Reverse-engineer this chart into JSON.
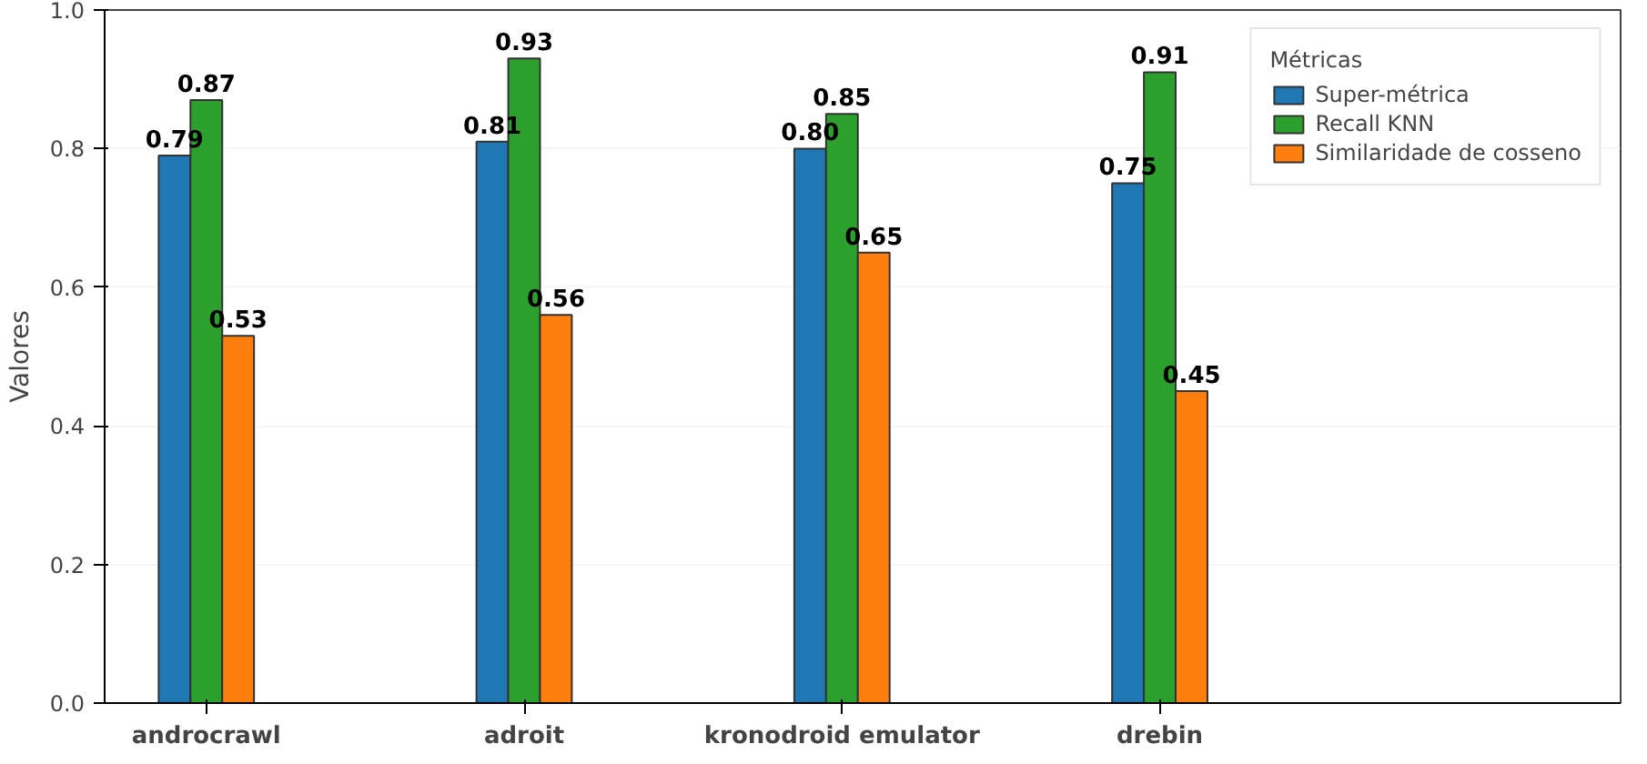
{
  "chart_data": {
    "type": "bar",
    "ylabel": "Valores",
    "legend_title": "Métricas",
    "categories": [
      "androcrawl",
      "adroit",
      "kronodroid emulator",
      "drebin"
    ],
    "series": [
      {
        "name": "Super-métrica",
        "color": "#1f77b4",
        "values": [
          0.79,
          0.81,
          0.8,
          0.75
        ],
        "value_labels": [
          "0.79",
          "0.81",
          "0.80",
          "0.75"
        ]
      },
      {
        "name": "Recall KNN",
        "color": "#2ca02c",
        "values": [
          0.87,
          0.93,
          0.85,
          0.91
        ]
      },
      {
        "name": "Similaridade de cosseno",
        "color": "#ff7f0e",
        "values": [
          0.53,
          0.56,
          0.65,
          0.45
        ]
      }
    ],
    "ylim": [
      0,
      1
    ],
    "yticks": [
      {
        "value": 0,
        "label": "0.0"
      },
      {
        "value": 0.2,
        "label": "0.2"
      },
      {
        "value": 0.4,
        "label": "0.4"
      },
      {
        "value": 0.6,
        "label": "0.6"
      },
      {
        "value": 0.8,
        "label": "0.8"
      },
      {
        "value": 1,
        "label": "1.0"
      }
    ],
    "grid": "y",
    "legend": "top right",
    "data_labels": true
  }
}
